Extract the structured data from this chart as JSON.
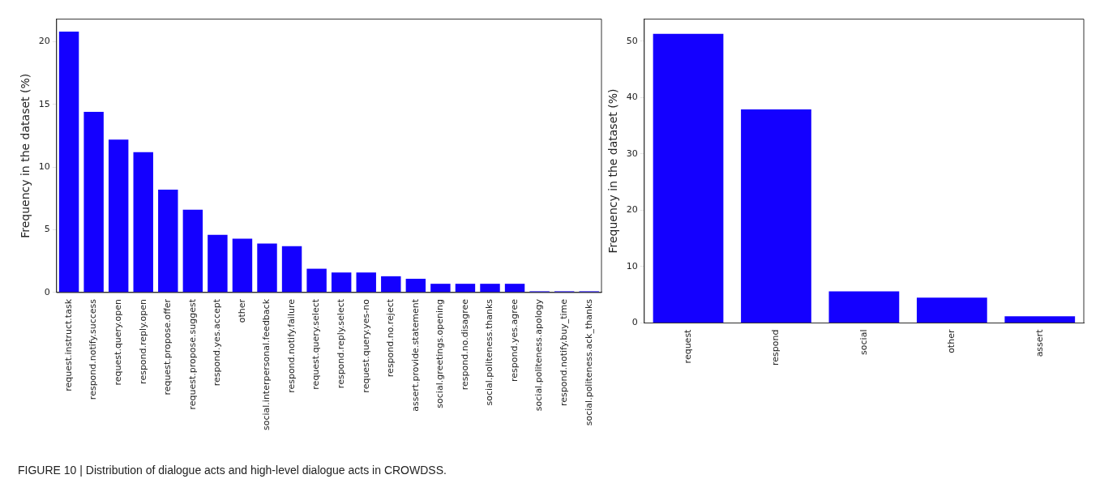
{
  "chart_data": [
    {
      "type": "bar",
      "ylabel": "Frequency in the dataset (%)",
      "categories": [
        "request.instruct.task",
        "respond.notify.success",
        "request.query.open",
        "respond.reply.open",
        "request.propose.offer",
        "request.propose.suggest",
        "respond.yes.accept",
        "other",
        "social.interpersonal.feedback",
        "respond.notify.failure",
        "request.query.select",
        "respond.reply.select",
        "request.query.yes-no",
        "respond.no.reject",
        "assert.provide.statement",
        "social.greetings.opening",
        "respond.no.disagree",
        "social.politeness.thanks",
        "respond.yes.agree",
        "social.politeness.apology",
        "respond.notify.buy_time",
        "social.politeness.ack_thanks"
      ],
      "values": [
        20.8,
        14.4,
        12.2,
        11.2,
        8.2,
        6.6,
        4.6,
        4.3,
        3.9,
        3.7,
        1.9,
        1.6,
        1.6,
        1.3,
        1.1,
        0.7,
        0.7,
        0.7,
        0.7,
        0.1,
        0.1,
        0.1
      ],
      "color": "#1400ff",
      "ylim": [
        0,
        21.8
      ],
      "yticks": [
        0,
        5,
        10,
        15,
        20
      ],
      "grid": false,
      "annotations": [
        "FIGURE 10 | Distribution of dialogue acts and high-level dialogue acts in CROWDSS."
      ]
    },
    {
      "type": "bar",
      "ylabel": "Frequency in the dataset (%)",
      "categories": [
        "request",
        "respond",
        "social",
        "other",
        "assert"
      ],
      "values": [
        51.3,
        37.9,
        5.6,
        4.5,
        1.2
      ],
      "color": "#1400ff",
      "ylim": [
        0,
        53.9
      ],
      "yticks": [
        0,
        10,
        20,
        30,
        40,
        50
      ],
      "grid": false
    }
  ]
}
